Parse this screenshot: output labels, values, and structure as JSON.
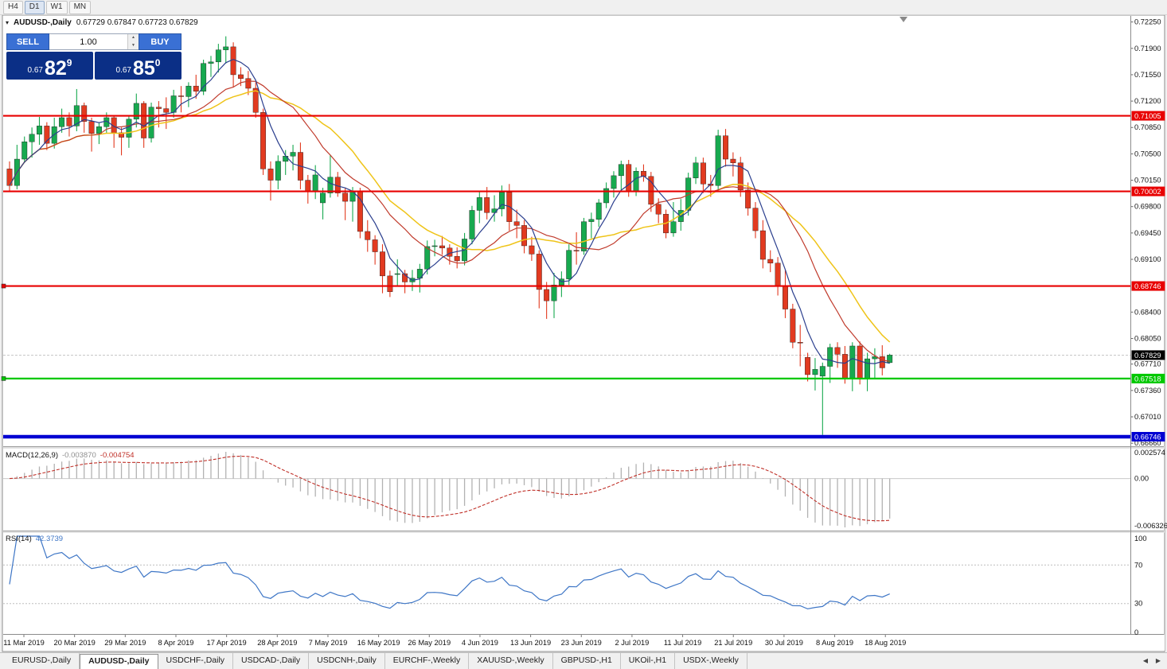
{
  "toolbar": {
    "timeframes": [
      "H4",
      "D1",
      "W1",
      "MN"
    ],
    "active": "D1"
  },
  "icons": {
    "one_click_toggle": "▾",
    "volume_up": "▲",
    "volume_down": "▼",
    "tab_scroll_left": "◀",
    "tab_scroll_right": "▶"
  },
  "chart_header": {
    "symbol": "AUDUSD-,Daily",
    "ohlc": "0.67729 0.67847 0.67723 0.67829"
  },
  "one_click": {
    "sell_label": "SELL",
    "buy_label": "BUY",
    "volume": "1.00",
    "sell_price": {
      "small": "0.67",
      "big": "82",
      "sup": "9"
    },
    "buy_price": {
      "small": "0.67",
      "big": "85",
      "sup": "0"
    }
  },
  "price_axis": {
    "labels": [
      "0.72250",
      "0.71900",
      "0.71550",
      "0.71200",
      "0.70850",
      "0.70500",
      "0.70150",
      "0.69800",
      "0.69450",
      "0.69100",
      "0.68400",
      "0.68050",
      "0.67710",
      "0.67360",
      "0.67010",
      "0.66660"
    ]
  },
  "time_axis": {
    "labels": [
      "11 Mar 2019",
      "20 Mar 2019",
      "29 Mar 2019",
      "8 Apr 2019",
      "17 Apr 2019",
      "28 Apr 2019",
      "7 May 2019",
      "16 May 2019",
      "26 May 2019",
      "4 Jun 2019",
      "13 Jun 2019",
      "23 Jun 2019",
      "2 Jul 2019",
      "11 Jul 2019",
      "21 Jul 2019",
      "30 Jul 2019",
      "8 Aug 2019",
      "18 Aug 2019"
    ]
  },
  "levels": [
    {
      "value": 0.71005,
      "label": "0.71005",
      "color": "#e80000",
      "width": 2.2,
      "handle": false
    },
    {
      "value": 0.70002,
      "label": "0.70002",
      "color": "#e80000",
      "width": 2.2,
      "handle": false
    },
    {
      "value": 0.68746,
      "label": "0.68746",
      "color": "#e80000",
      "width": 2.2,
      "handle": true
    },
    {
      "value": 0.67518,
      "label": "0.67518",
      "color": "#00c800",
      "width": 2.2,
      "handle": true
    },
    {
      "value": 0.66746,
      "label": "0.66746",
      "color": "#0000d2",
      "width": 4.5,
      "handle": false
    }
  ],
  "current_price": {
    "value": 0.67829,
    "label": "0.67829",
    "badge_color": "#000000"
  },
  "indicators": {
    "macd": {
      "name": "MACD(12,26,9)",
      "value_main": "-0.003870",
      "value_signal": "-0.004754",
      "axis_top": "0.002574",
      "axis_zero": "0.00",
      "axis_bottom": "-0.006326",
      "histogram_color": "#b2b2b2",
      "signal_color": "#c03028"
    },
    "rsi": {
      "name": "RSI(14)",
      "value": "42.3739",
      "axis": [
        "100",
        "70",
        "30",
        "0"
      ],
      "levels": [
        70,
        30
      ],
      "line_color": "#3e76c6"
    }
  },
  "bottom_tabs": {
    "tabs": [
      "EURUSD-,Daily",
      "AUDUSD-,Daily",
      "USDCHF-,Daily",
      "USDCAD-,Daily",
      "USDCNH-,Daily",
      "EURCHF-,Weekly",
      "XAUUSD-,Weekly",
      "GBPUSD-,H1",
      "UKOil-,H1",
      "USDX-,Weekly"
    ],
    "active": "AUDUSD-,Daily"
  },
  "chart_data": {
    "type": "candlestick",
    "symbol": "AUDUSD",
    "timeframe": "Daily",
    "bull_color": "#17a94f",
    "bear_color": "#e23a20",
    "price_range": [
      0.6663,
      0.7232
    ],
    "moving_averages": [
      {
        "period": 18,
        "color": "#efc419",
        "width": 1.5
      },
      {
        "period": 13,
        "color": "#c03a2b",
        "width": 1.2
      },
      {
        "period": 5,
        "color": "#2b3f8e",
        "width": 1.2
      }
    ],
    "candles": [
      [
        0.703,
        0.704,
        0.7,
        0.7008
      ],
      [
        0.7008,
        0.7062,
        0.7003,
        0.7043
      ],
      [
        0.7043,
        0.7073,
        0.7038,
        0.7066
      ],
      [
        0.7066,
        0.7085,
        0.7045,
        0.7076
      ],
      [
        0.7076,
        0.7099,
        0.7062,
        0.7087
      ],
      [
        0.7087,
        0.7092,
        0.7055,
        0.7064
      ],
      [
        0.7064,
        0.7098,
        0.7057,
        0.7086
      ],
      [
        0.7086,
        0.711,
        0.7078,
        0.7098
      ],
      [
        0.7098,
        0.7105,
        0.7073,
        0.7087
      ],
      [
        0.7087,
        0.7136,
        0.708,
        0.7114
      ],
      [
        0.7114,
        0.7118,
        0.7078,
        0.7093
      ],
      [
        0.7093,
        0.7098,
        0.7053,
        0.7077
      ],
      [
        0.7077,
        0.7092,
        0.7063,
        0.7086
      ],
      [
        0.7086,
        0.7105,
        0.7078,
        0.7098
      ],
      [
        0.7098,
        0.71,
        0.7058,
        0.7078
      ],
      [
        0.7078,
        0.7085,
        0.7048,
        0.7072
      ],
      [
        0.7072,
        0.71,
        0.7058,
        0.7096
      ],
      [
        0.7096,
        0.713,
        0.7085,
        0.7117
      ],
      [
        0.7117,
        0.712,
        0.7058,
        0.7071
      ],
      [
        0.7071,
        0.7118,
        0.7065,
        0.7112
      ],
      [
        0.7112,
        0.712,
        0.7085,
        0.711
      ],
      [
        0.711,
        0.7125,
        0.7083,
        0.7105
      ],
      [
        0.7105,
        0.7135,
        0.7098,
        0.7127
      ],
      [
        0.7127,
        0.714,
        0.7105,
        0.7126
      ],
      [
        0.7126,
        0.7145,
        0.7112,
        0.714
      ],
      [
        0.714,
        0.7155,
        0.7123,
        0.7133
      ],
      [
        0.7133,
        0.7175,
        0.7128,
        0.717
      ],
      [
        0.717,
        0.718,
        0.7152,
        0.7172
      ],
      [
        0.7172,
        0.7196,
        0.7158,
        0.7188
      ],
      [
        0.7188,
        0.7206,
        0.717,
        0.7192
      ],
      [
        0.7192,
        0.7198,
        0.7138,
        0.7155
      ],
      [
        0.7155,
        0.7165,
        0.714,
        0.715
      ],
      [
        0.715,
        0.716,
        0.7128,
        0.7137
      ],
      [
        0.7137,
        0.7145,
        0.7098,
        0.7105
      ],
      [
        0.7105,
        0.711,
        0.7022,
        0.703
      ],
      [
        0.703,
        0.704,
        0.6988,
        0.7015
      ],
      [
        0.7015,
        0.7048,
        0.7003,
        0.704
      ],
      [
        0.704,
        0.7055,
        0.7022,
        0.7047
      ],
      [
        0.7047,
        0.7062,
        0.7028,
        0.7052
      ],
      [
        0.7052,
        0.7065,
        0.7003,
        0.7015
      ],
      [
        0.7015,
        0.7022,
        0.6984,
        0.7
      ],
      [
        0.7,
        0.7035,
        0.699,
        0.7022
      ],
      [
        0.6985,
        0.7005,
        0.6963,
        0.6998
      ],
      [
        0.6998,
        0.7048,
        0.6992,
        0.7019
      ],
      [
        0.7019,
        0.7026,
        0.6993,
        0.6998
      ],
      [
        0.6998,
        0.7005,
        0.6962,
        0.6987
      ],
      [
        0.6987,
        0.7006,
        0.696,
        0.7
      ],
      [
        0.7,
        0.7005,
        0.6938,
        0.6947
      ],
      [
        0.6947,
        0.6962,
        0.692,
        0.6936
      ],
      [
        0.6936,
        0.6942,
        0.6903,
        0.692
      ],
      [
        0.692,
        0.693,
        0.6865,
        0.6888
      ],
      [
        0.6888,
        0.6895,
        0.686,
        0.6867
      ],
      [
        0.689,
        0.691,
        0.6874,
        0.6891
      ],
      [
        0.6891,
        0.6896,
        0.6865,
        0.688
      ],
      [
        0.688,
        0.6896,
        0.6868,
        0.6885
      ],
      [
        0.6885,
        0.6904,
        0.6866,
        0.6897
      ],
      [
        0.6897,
        0.6935,
        0.689,
        0.6927
      ],
      [
        0.6927,
        0.6936,
        0.6914,
        0.6928
      ],
      [
        0.6928,
        0.6941,
        0.6916,
        0.6925
      ],
      [
        0.6925,
        0.693,
        0.6903,
        0.6914
      ],
      [
        0.6914,
        0.6926,
        0.6898,
        0.6908
      ],
      [
        0.6908,
        0.6945,
        0.6902,
        0.6937
      ],
      [
        0.6937,
        0.6981,
        0.693,
        0.6975
      ],
      [
        0.6975,
        0.7,
        0.6958,
        0.6992
      ],
      [
        0.6992,
        0.7006,
        0.6963,
        0.6972
      ],
      [
        0.6972,
        0.6995,
        0.696,
        0.6977
      ],
      [
        0.6977,
        0.7008,
        0.6967,
        0.6999
      ],
      [
        0.6999,
        0.701,
        0.6948,
        0.696
      ],
      [
        0.696,
        0.6976,
        0.6938,
        0.6955
      ],
      [
        0.6955,
        0.6962,
        0.6918,
        0.6928
      ],
      [
        0.6928,
        0.694,
        0.6908,
        0.6917
      ],
      [
        0.6917,
        0.6922,
        0.6845,
        0.687
      ],
      [
        0.687,
        0.688,
        0.6831,
        0.6855
      ],
      [
        0.6855,
        0.6892,
        0.6832,
        0.6876
      ],
      [
        0.6876,
        0.6894,
        0.686,
        0.6884
      ],
      [
        0.6884,
        0.693,
        0.6876,
        0.6922
      ],
      [
        0.6922,
        0.6946,
        0.6903,
        0.6921
      ],
      [
        0.6921,
        0.6965,
        0.6916,
        0.696
      ],
      [
        0.696,
        0.6972,
        0.6938,
        0.6963
      ],
      [
        0.6963,
        0.699,
        0.6953,
        0.6985
      ],
      [
        0.6985,
        0.7012,
        0.6978,
        0.7004
      ],
      [
        0.7004,
        0.7027,
        0.6992,
        0.7021
      ],
      [
        0.7021,
        0.7041,
        0.7,
        0.7036
      ],
      [
        0.7036,
        0.7042,
        0.6993,
        0.7
      ],
      [
        0.7,
        0.7032,
        0.6994,
        0.7027
      ],
      [
        0.7027,
        0.7036,
        0.7013,
        0.702
      ],
      [
        0.702,
        0.7026,
        0.6973,
        0.6983
      ],
      [
        0.6983,
        0.6991,
        0.6958,
        0.697
      ],
      [
        0.697,
        0.6976,
        0.6938,
        0.6945
      ],
      [
        0.6945,
        0.6986,
        0.694,
        0.696
      ],
      [
        0.696,
        0.699,
        0.6948,
        0.6975
      ],
      [
        0.6975,
        0.7025,
        0.6968,
        0.7018
      ],
      [
        0.7018,
        0.7046,
        0.701,
        0.7038
      ],
      [
        0.7038,
        0.7045,
        0.6998,
        0.701
      ],
      [
        0.701,
        0.7022,
        0.6993,
        0.7008
      ],
      [
        0.7008,
        0.7082,
        0.7,
        0.7074
      ],
      [
        0.7074,
        0.7083,
        0.7033,
        0.7043
      ],
      [
        0.7043,
        0.7052,
        0.702,
        0.7038
      ],
      [
        0.7038,
        0.7046,
        0.6993,
        0.7002
      ],
      [
        0.7002,
        0.7012,
        0.6968,
        0.6978
      ],
      [
        0.6978,
        0.6986,
        0.6938,
        0.6948
      ],
      [
        0.6948,
        0.6962,
        0.6898,
        0.691
      ],
      [
        0.691,
        0.6922,
        0.6893,
        0.6905
      ],
      [
        0.6905,
        0.6913,
        0.6862,
        0.6874
      ],
      [
        0.6874,
        0.6896,
        0.6832,
        0.6844
      ],
      [
        0.6844,
        0.6851,
        0.6792,
        0.68
      ],
      [
        0.68,
        0.6823,
        0.6768,
        0.6799
      ],
      [
        0.678,
        0.6786,
        0.6748,
        0.6757
      ],
      [
        0.6757,
        0.6779,
        0.6736,
        0.6764
      ],
      [
        0.6755,
        0.6773,
        0.6677,
        0.6768
      ],
      [
        0.6768,
        0.6798,
        0.6746,
        0.6793
      ],
      [
        0.6793,
        0.68,
        0.6766,
        0.6784
      ],
      [
        0.6784,
        0.6795,
        0.6745,
        0.6752
      ],
      [
        0.6752,
        0.68,
        0.6735,
        0.6795
      ],
      [
        0.6795,
        0.6801,
        0.6744,
        0.6752
      ],
      [
        0.6752,
        0.6786,
        0.6735,
        0.6778
      ],
      [
        0.6778,
        0.6792,
        0.6752,
        0.6781
      ],
      [
        0.6781,
        0.6796,
        0.6756,
        0.6766
      ],
      [
        0.67729,
        0.67847,
        0.67723,
        0.67829
      ]
    ]
  }
}
